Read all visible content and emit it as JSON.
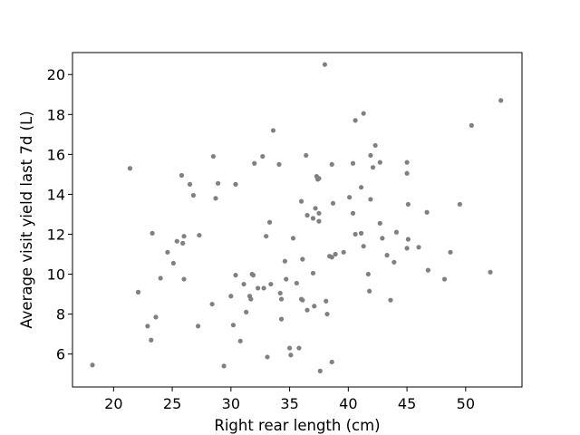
{
  "chart_data": {
    "type": "scatter",
    "title": "",
    "xlabel": "Right rear length (cm)",
    "ylabel": "Average visit yield last 7d (L)",
    "xlim": [
      16.5,
      54.8
    ],
    "ylim": [
      4.35,
      21.1
    ],
    "xticks": [
      20,
      25,
      30,
      35,
      40,
      45,
      50
    ],
    "yticks": [
      6,
      8,
      10,
      12,
      14,
      16,
      18,
      20
    ],
    "grid": false,
    "legend": "none",
    "marker_color": "#808080",
    "points": [
      [
        18.2,
        5.45
      ],
      [
        21.4,
        15.3
      ],
      [
        22.1,
        9.1
      ],
      [
        22.9,
        7.4
      ],
      [
        23.2,
        6.7
      ],
      [
        23.3,
        12.05
      ],
      [
        23.6,
        7.85
      ],
      [
        24.0,
        9.8
      ],
      [
        24.6,
        11.1
      ],
      [
        25.1,
        10.55
      ],
      [
        25.4,
        11.65
      ],
      [
        25.8,
        14.95
      ],
      [
        25.9,
        11.55
      ],
      [
        26.0,
        9.75
      ],
      [
        26.0,
        11.9
      ],
      [
        26.5,
        14.5
      ],
      [
        26.8,
        13.95
      ],
      [
        27.2,
        7.4
      ],
      [
        27.3,
        11.95
      ],
      [
        28.4,
        8.5
      ],
      [
        28.5,
        15.9
      ],
      [
        28.7,
        13.8
      ],
      [
        28.9,
        14.55
      ],
      [
        29.4,
        5.4
      ],
      [
        30.0,
        8.9
      ],
      [
        30.2,
        7.45
      ],
      [
        30.4,
        9.95
      ],
      [
        30.4,
        14.5
      ],
      [
        30.8,
        6.65
      ],
      [
        31.1,
        9.5
      ],
      [
        31.3,
        8.1
      ],
      [
        31.6,
        8.9
      ],
      [
        31.7,
        8.75
      ],
      [
        31.8,
        10.0
      ],
      [
        31.9,
        9.95
      ],
      [
        32.0,
        15.55
      ],
      [
        32.3,
        9.3
      ],
      [
        32.7,
        15.9
      ],
      [
        32.8,
        9.3
      ],
      [
        33.0,
        11.9
      ],
      [
        33.1,
        5.85
      ],
      [
        33.3,
        12.6
      ],
      [
        33.4,
        9.5
      ],
      [
        33.6,
        17.2
      ],
      [
        34.1,
        15.5
      ],
      [
        34.2,
        9.05
      ],
      [
        34.3,
        8.75
      ],
      [
        34.3,
        7.75
      ],
      [
        34.6,
        10.65
      ],
      [
        34.7,
        9.75
      ],
      [
        35.0,
        6.3
      ],
      [
        35.1,
        5.95
      ],
      [
        35.3,
        11.8
      ],
      [
        35.6,
        9.55
      ],
      [
        35.8,
        6.3
      ],
      [
        36.0,
        13.65
      ],
      [
        36.0,
        8.75
      ],
      [
        36.1,
        8.7
      ],
      [
        36.1,
        10.75
      ],
      [
        36.4,
        15.95
      ],
      [
        36.5,
        8.2
      ],
      [
        36.5,
        12.95
      ],
      [
        37.0,
        12.8
      ],
      [
        37.0,
        10.05
      ],
      [
        37.1,
        8.4
      ],
      [
        37.2,
        13.3
      ],
      [
        37.3,
        14.9
      ],
      [
        37.4,
        14.75
      ],
      [
        37.5,
        14.8
      ],
      [
        37.5,
        13.05
      ],
      [
        37.5,
        12.65
      ],
      [
        37.6,
        5.15
      ],
      [
        38.0,
        20.5
      ],
      [
        38.1,
        8.65
      ],
      [
        38.2,
        8.0
      ],
      [
        38.4,
        10.9
      ],
      [
        38.6,
        15.5
      ],
      [
        38.6,
        10.85
      ],
      [
        38.7,
        13.55
      ],
      [
        38.9,
        11.0
      ],
      [
        38.6,
        5.6
      ],
      [
        39.6,
        11.1
      ],
      [
        40.1,
        13.85
      ],
      [
        40.4,
        15.55
      ],
      [
        40.4,
        13.05
      ],
      [
        40.6,
        12.0
      ],
      [
        40.6,
        17.7
      ],
      [
        41.1,
        12.05
      ],
      [
        41.1,
        14.35
      ],
      [
        41.3,
        18.05
      ],
      [
        41.3,
        11.4
      ],
      [
        41.7,
        10.0
      ],
      [
        41.8,
        9.15
      ],
      [
        41.9,
        13.75
      ],
      [
        41.9,
        15.95
      ],
      [
        42.1,
        15.35
      ],
      [
        42.3,
        16.45
      ],
      [
        42.7,
        15.6
      ],
      [
        42.7,
        12.55
      ],
      [
        42.9,
        11.8
      ],
      [
        43.3,
        10.95
      ],
      [
        43.6,
        8.7
      ],
      [
        43.9,
        10.6
      ],
      [
        44.1,
        12.1
      ],
      [
        45.0,
        15.05
      ],
      [
        45.0,
        15.6
      ],
      [
        45.0,
        11.3
      ],
      [
        45.1,
        11.75
      ],
      [
        45.1,
        13.5
      ],
      [
        46.0,
        11.35
      ],
      [
        46.7,
        13.1
      ],
      [
        46.8,
        10.2
      ],
      [
        48.2,
        9.75
      ],
      [
        48.7,
        11.1
      ],
      [
        49.5,
        13.5
      ],
      [
        50.5,
        17.45
      ],
      [
        52.1,
        10.1
      ],
      [
        53.0,
        18.7
      ]
    ]
  }
}
